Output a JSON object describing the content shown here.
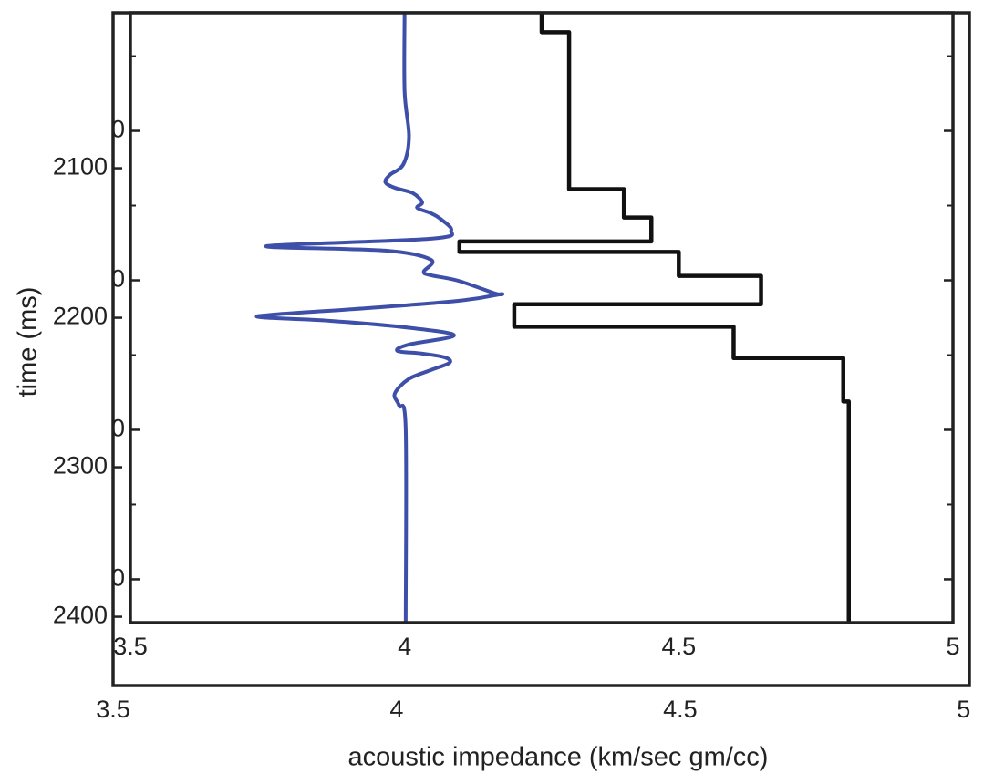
{
  "chart_data": [
    {
      "type": "line",
      "xlabel": "acoustic impedance (km/sec gm/cc)",
      "ylabel": "time (ms)",
      "xlim": [
        3.5,
        5.01
      ],
      "xticks": [
        3.5,
        4,
        4.5,
        5
      ],
      "ylim": [
        1996,
        2446
      ],
      "yticks": [
        2100,
        2200,
        2300,
        2400
      ],
      "series": []
    },
    {
      "type": "line",
      "xlim": [
        3.5,
        5
      ],
      "xticks": [
        3.5,
        4,
        4.5,
        5
      ],
      "ylim": [
        1996,
        2404
      ],
      "yticks": [
        {
          "value": 2075,
          "label": "0"
        },
        {
          "value": 2175,
          "label": "0"
        },
        {
          "value": 2275,
          "label": "0"
        },
        {
          "value": 2375,
          "label": "0"
        }
      ],
      "yminorticks": [
        2025,
        2125,
        2225,
        2325
      ],
      "series": [
        {
          "color": "#3d4fa8",
          "smooth": true,
          "x": [
            4.0,
            4.0,
            4.008,
            3.998,
            3.973,
            3.965,
            3.982,
            4.015,
            4.032,
            4.023,
            4.048,
            4.065,
            4.085,
            4.048,
            3.748,
            3.965,
            4.048,
            4.035,
            4.048,
            4.098,
            4.165,
            4.173,
            4.098,
            3.932,
            3.765,
            3.738,
            3.865,
            4.015,
            4.09,
            4.007,
            3.987,
            4.032,
            4.073,
            4.082,
            4.048,
            4.007,
            3.982,
            3.99,
            4.002,
            4.002
          ],
          "y": [
            1996,
            2048.4,
            2078.9,
            2097.2,
            2104.5,
            2109.4,
            2113.1,
            2116.7,
            2122.8,
            2126.5,
            2130.1,
            2133.8,
            2141.7,
            2147.2,
            2152.1,
            2155.1,
            2161.2,
            2169.2,
            2171.6,
            2175.3,
            2183.8,
            2184.4,
            2188.7,
            2193.6,
            2197.8,
            2199.7,
            2202.1,
            2207,
            2211.9,
            2218,
            2222.2,
            2224,
            2226.5,
            2230.1,
            2235,
            2241.1,
            2250.9,
            2258.8,
            2274,
            2404
          ]
        },
        {
          "color": "#111111",
          "smooth": false,
          "x": [
            4.25,
            4.25,
            4.3,
            4.3,
            4.4,
            4.4,
            4.45,
            4.45,
            4.1,
            4.1,
            4.5,
            4.5,
            4.65,
            4.65,
            4.2,
            4.2,
            4.6,
            4.6,
            4.8,
            4.8,
            4.81,
            4.81
          ],
          "y": [
            1996,
            2009,
            2009,
            2114,
            2114,
            2133,
            2133,
            2149,
            2149,
            2156,
            2156,
            2172,
            2172,
            2191,
            2191,
            2206,
            2206,
            2227,
            2227,
            2256,
            2256,
            2404
          ]
        }
      ]
    }
  ]
}
